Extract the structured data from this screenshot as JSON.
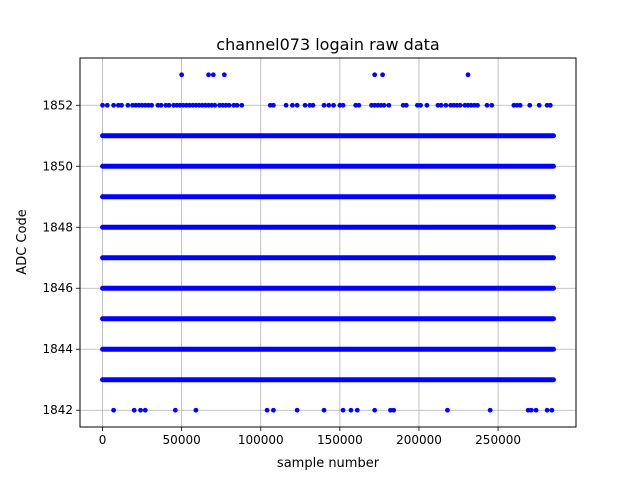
{
  "chart_data": {
    "type": "scatter",
    "title": "channel073 logain raw data",
    "xlabel": "sample number",
    "ylabel": "ADC Code",
    "xlim": [
      -14250,
      299250
    ],
    "ylim": [
      1841.45,
      1853.55
    ],
    "xticks": [
      0,
      50000,
      100000,
      150000,
      200000,
      250000
    ],
    "xtick_labels": [
      "0",
      "50000",
      "100000",
      "150000",
      "200000",
      "250000"
    ],
    "yticks": [
      1842,
      1844,
      1846,
      1848,
      1850,
      1852
    ],
    "ytick_labels": [
      "1842",
      "1844",
      "1846",
      "1848",
      "1850",
      "1852"
    ],
    "grid": true,
    "marker_color": "#0000ff",
    "x_extent": [
      0,
      285000
    ],
    "dense_levels": [
      1843,
      1844,
      1845,
      1846,
      1847,
      1848,
      1849,
      1850,
      1851
    ],
    "series": [
      {
        "values": [
          [
            50000,
            1853
          ],
          [
            67000,
            1853
          ],
          [
            70000,
            1853
          ],
          [
            77000,
            1853
          ],
          [
            172000,
            1853
          ],
          [
            177000,
            1853
          ],
          [
            231000,
            1853
          ],
          [
            0,
            1852
          ],
          [
            3000,
            1852
          ],
          [
            7000,
            1852
          ],
          [
            10000,
            1852
          ],
          [
            12000,
            1852
          ],
          [
            16000,
            1852
          ],
          [
            19000,
            1852
          ],
          [
            21000,
            1852
          ],
          [
            23000,
            1852
          ],
          [
            25000,
            1852
          ],
          [
            27000,
            1852
          ],
          [
            29000,
            1852
          ],
          [
            31000,
            1852
          ],
          [
            35000,
            1852
          ],
          [
            37000,
            1852
          ],
          [
            40000,
            1852
          ],
          [
            42000,
            1852
          ],
          [
            45000,
            1852
          ],
          [
            47000,
            1852
          ],
          [
            49000,
            1852
          ],
          [
            51000,
            1852
          ],
          [
            53000,
            1852
          ],
          [
            55000,
            1852
          ],
          [
            57000,
            1852
          ],
          [
            59000,
            1852
          ],
          [
            61000,
            1852
          ],
          [
            63000,
            1852
          ],
          [
            65000,
            1852
          ],
          [
            67000,
            1852
          ],
          [
            69000,
            1852
          ],
          [
            71000,
            1852
          ],
          [
            74000,
            1852
          ],
          [
            76000,
            1852
          ],
          [
            78000,
            1852
          ],
          [
            80000,
            1852
          ],
          [
            83000,
            1852
          ],
          [
            85000,
            1852
          ],
          [
            88000,
            1852
          ],
          [
            106000,
            1852
          ],
          [
            108000,
            1852
          ],
          [
            116000,
            1852
          ],
          [
            120000,
            1852
          ],
          [
            123000,
            1852
          ],
          [
            128000,
            1852
          ],
          [
            131000,
            1852
          ],
          [
            133000,
            1852
          ],
          [
            140000,
            1852
          ],
          [
            143000,
            1852
          ],
          [
            146000,
            1852
          ],
          [
            150000,
            1852
          ],
          [
            152000,
            1852
          ],
          [
            160000,
            1852
          ],
          [
            162000,
            1852
          ],
          [
            170000,
            1852
          ],
          [
            172000,
            1852
          ],
          [
            174000,
            1852
          ],
          [
            176000,
            1852
          ],
          [
            178000,
            1852
          ],
          [
            181000,
            1852
          ],
          [
            190000,
            1852
          ],
          [
            192000,
            1852
          ],
          [
            199000,
            1852
          ],
          [
            201000,
            1852
          ],
          [
            205000,
            1852
          ],
          [
            212000,
            1852
          ],
          [
            214000,
            1852
          ],
          [
            217000,
            1852
          ],
          [
            220000,
            1852
          ],
          [
            222000,
            1852
          ],
          [
            224000,
            1852
          ],
          [
            226000,
            1852
          ],
          [
            229000,
            1852
          ],
          [
            231000,
            1852
          ],
          [
            233000,
            1852
          ],
          [
            235000,
            1852
          ],
          [
            237000,
            1852
          ],
          [
            243000,
            1852
          ],
          [
            246000,
            1852
          ],
          [
            260000,
            1852
          ],
          [
            262000,
            1852
          ],
          [
            264000,
            1852
          ],
          [
            270000,
            1852
          ],
          [
            276000,
            1852
          ],
          [
            281000,
            1852
          ],
          [
            283000,
            1852
          ],
          [
            7000,
            1842
          ],
          [
            20000,
            1842
          ],
          [
            24000,
            1842
          ],
          [
            27000,
            1842
          ],
          [
            46000,
            1842
          ],
          [
            59000,
            1842
          ],
          [
            104000,
            1842
          ],
          [
            108000,
            1842
          ],
          [
            123000,
            1842
          ],
          [
            140000,
            1842
          ],
          [
            152000,
            1842
          ],
          [
            157000,
            1842
          ],
          [
            161000,
            1842
          ],
          [
            172000,
            1842
          ],
          [
            182000,
            1842
          ],
          [
            184000,
            1842
          ],
          [
            218000,
            1842
          ],
          [
            245000,
            1842
          ],
          [
            269000,
            1842
          ],
          [
            271000,
            1842
          ],
          [
            274000,
            1842
          ],
          [
            281000,
            1842
          ],
          [
            284000,
            1842
          ]
        ]
      }
    ]
  }
}
